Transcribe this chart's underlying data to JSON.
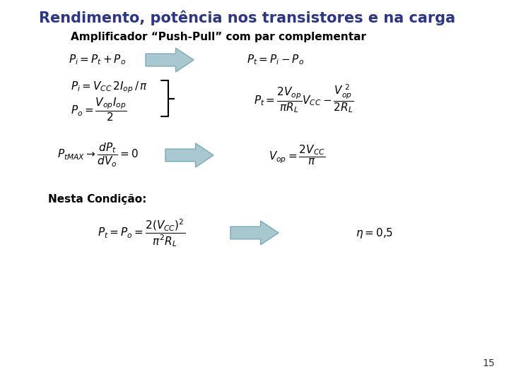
{
  "title": "Rendimento, potência nos transistores e na carga",
  "subtitle": "Amplificador “Push-Pull” com par complementar",
  "footer_note": "Nesta Condição:",
  "page_number": "15",
  "background_color": "#ffffff",
  "title_color": "#2B3590",
  "subtitle_color": "#000000",
  "formula_color": "#000000",
  "arrow_facecolor": "#A8C8D0",
  "arrow_edgecolor": "#7AAAB8"
}
